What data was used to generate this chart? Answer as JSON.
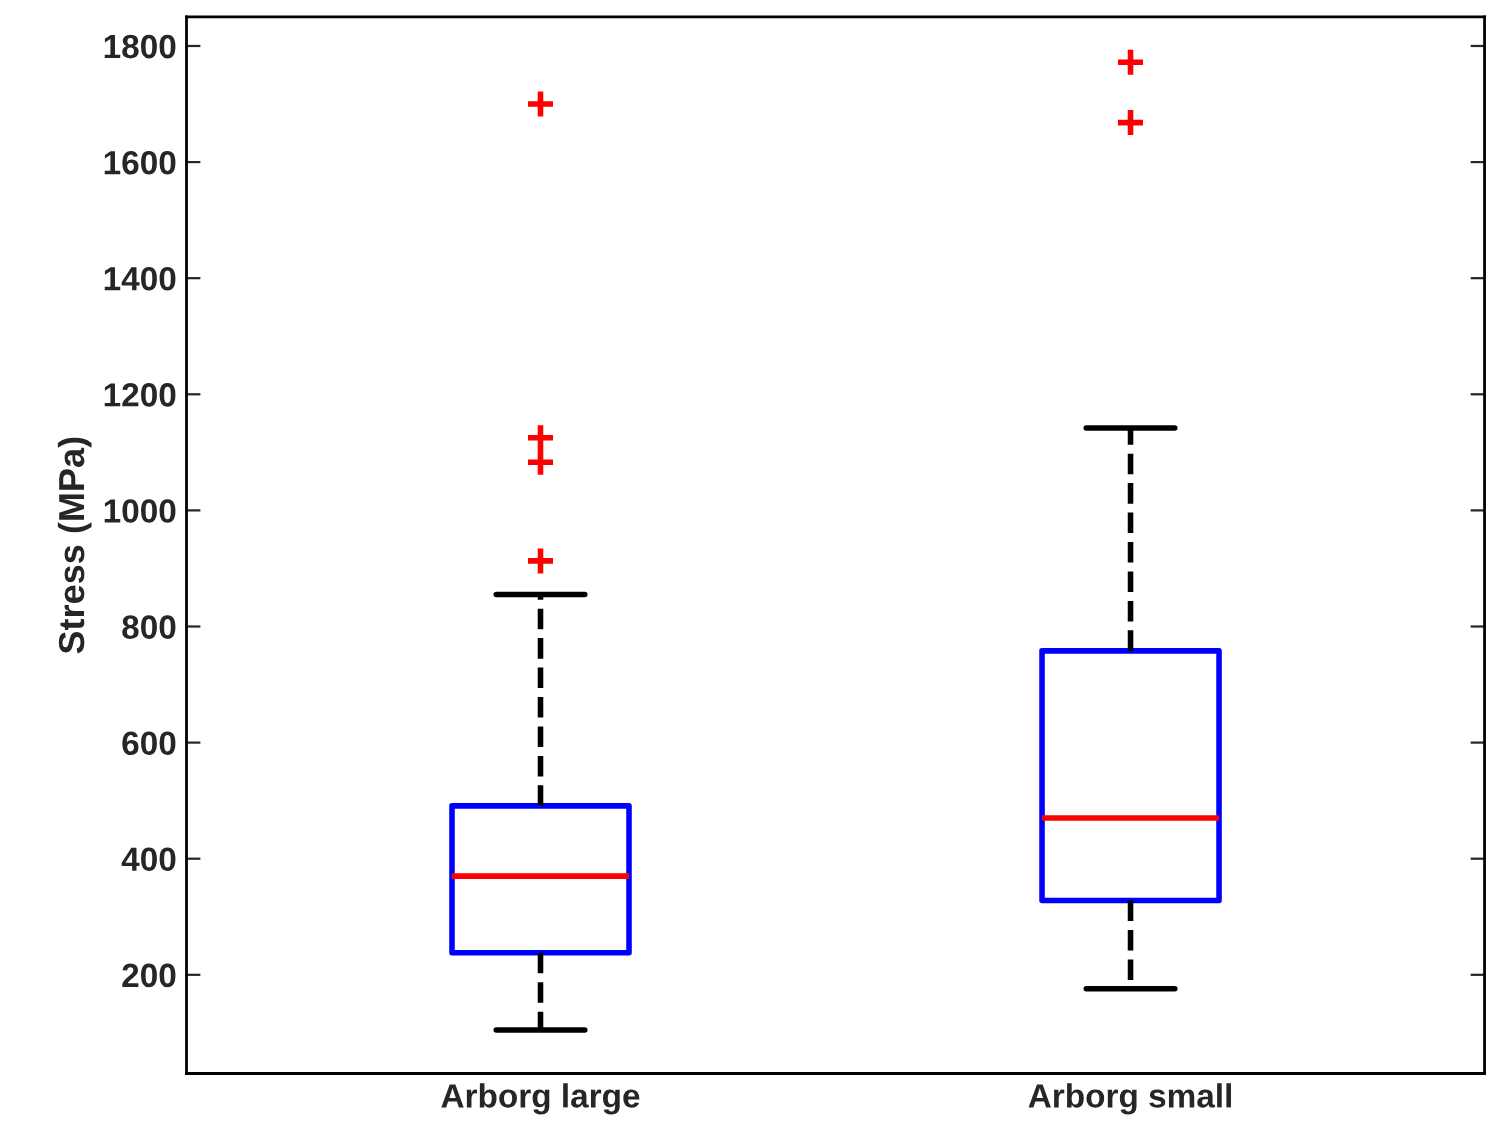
{
  "chart_data": {
    "type": "box",
    "ylabel": "Stress (MPa)",
    "categories": [
      "Arborg large",
      "Arborg small"
    ],
    "boxes": [
      {
        "low": 105,
        "q1": 238,
        "median": 370,
        "q3": 491,
        "high": 855,
        "outliers": [
          913,
          1083,
          1125,
          1700
        ]
      },
      {
        "low": 176,
        "q1": 328,
        "median": 470,
        "q3": 758,
        "high": 1142,
        "outliers": [
          1668,
          1772
        ]
      }
    ],
    "color": "#0000ff",
    "ylim": [
      30,
      1850
    ],
    "yticks": [
      200,
      400,
      600,
      800,
      1000,
      1200,
      1400,
      1600,
      1800
    ],
    "grid": false,
    "marker": "cross"
  }
}
